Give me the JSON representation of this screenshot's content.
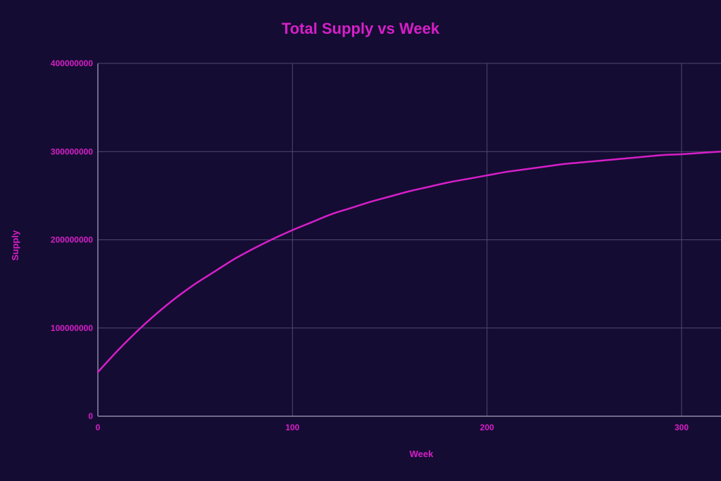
{
  "colors": {
    "background": "#150c33",
    "accent": "#d61fc8",
    "grid": "#4f4870",
    "axis": "#8d88a8"
  },
  "chart_data": {
    "type": "line",
    "title": "Total Supply vs Week",
    "xlabel": "Week",
    "ylabel": "Supply",
    "xlim": [
      0,
      320
    ],
    "ylim": [
      0,
      400000000
    ],
    "x_ticks": [
      0,
      100,
      200,
      300
    ],
    "y_ticks": [
      0,
      100000000,
      200000000,
      300000000,
      400000000
    ],
    "x_tick_labels": [
      "0",
      "100",
      "200",
      "300"
    ],
    "y_tick_labels": [
      "0",
      "100000000",
      "200000000",
      "300000000",
      "400000000"
    ],
    "grid": true,
    "legend": "none",
    "series": [
      {
        "color": "#d61fc8",
        "x": [
          0,
          10,
          20,
          30,
          40,
          50,
          60,
          70,
          80,
          90,
          100,
          110,
          120,
          130,
          140,
          150,
          160,
          170,
          180,
          190,
          200,
          210,
          220,
          230,
          240,
          250,
          260,
          270,
          280,
          290,
          300,
          310,
          320
        ],
        "y": [
          50000000,
          74000000,
          96000000,
          116000000,
          134000000,
          150000000,
          164000000,
          178000000,
          190000000,
          201000000,
          211000000,
          220000000,
          229000000,
          236000000,
          243000000,
          249000000,
          255000000,
          260000000,
          265000000,
          269000000,
          273000000,
          277000000,
          280000000,
          283000000,
          286000000,
          288000000,
          290000000,
          292000000,
          294000000,
          296000000,
          297000000,
          298500000,
          300000000
        ]
      }
    ]
  }
}
